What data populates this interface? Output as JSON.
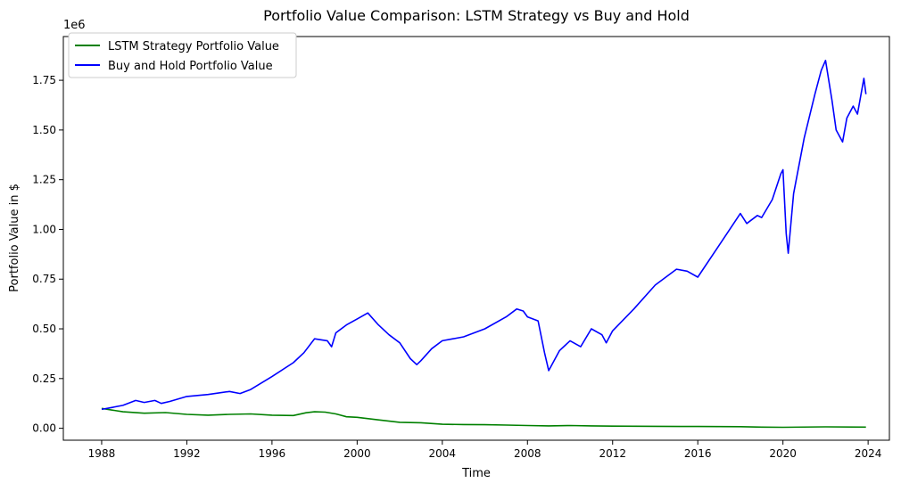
{
  "chart_data": {
    "type": "line",
    "title": "Portfolio Value Comparison: LSTM Strategy vs Buy and Hold",
    "xlabel": "Time",
    "ylabel": "Portfolio Value in $",
    "y_offset_label": "1e6",
    "xlim": [
      1986.2,
      2025.0
    ],
    "ylim": [
      -60000,
      1970000
    ],
    "x_ticks": [
      1988,
      1992,
      1996,
      2000,
      2004,
      2008,
      2012,
      2016,
      2020,
      2024
    ],
    "x_tick_labels": [
      "1988",
      "1992",
      "1996",
      "2000",
      "2004",
      "2008",
      "2012",
      "2016",
      "2020",
      "2024"
    ],
    "y_ticks": [
      0,
      250000,
      500000,
      750000,
      1000000,
      1250000,
      1500000,
      1750000
    ],
    "y_tick_labels": [
      "0.00",
      "0.25",
      "0.50",
      "0.75",
      "1.00",
      "1.25",
      "1.50",
      "1.75"
    ],
    "grid": false,
    "legend_position": "top-left",
    "series": [
      {
        "name": "LSTM Strategy Portfolio Value",
        "color": "#008000",
        "x": [
          1988.0,
          1989.0,
          1990.0,
          1991.0,
          1992.0,
          1993.0,
          1994.0,
          1995.0,
          1996.0,
          1997.0,
          1997.6,
          1998.0,
          1998.5,
          1999.0,
          1999.5,
          2000.0,
          2001.0,
          2002.0,
          2003.0,
          2004.0,
          2005.0,
          2006.0,
          2007.0,
          2008.0,
          2009.0,
          2010.0,
          2011.0,
          2012.0,
          2014.0,
          2016.0,
          2018.0,
          2019.0,
          2020.0,
          2022.0,
          2023.9
        ],
        "y": [
          100000,
          83000,
          76000,
          79000,
          70000,
          66000,
          70000,
          72000,
          66000,
          64000,
          78000,
          83000,
          81000,
          72000,
          58000,
          55000,
          42000,
          30000,
          28000,
          20000,
          19000,
          18000,
          16000,
          14000,
          12000,
          14000,
          12000,
          11000,
          10000,
          9000,
          8000,
          6000,
          5000,
          7000,
          6000
        ]
      },
      {
        "name": "Buy and Hold Portfolio Value",
        "color": "#0000ff",
        "x": [
          1988.0,
          1988.5,
          1989.0,
          1989.6,
          1990.0,
          1990.5,
          1990.8,
          1991.2,
          1992.0,
          1993.0,
          1994.0,
          1994.5,
          1995.0,
          1996.0,
          1997.0,
          1997.5,
          1998.0,
          1998.6,
          1998.8,
          1999.0,
          1999.5,
          2000.0,
          2000.5,
          2001.0,
          2001.5,
          2002.0,
          2002.5,
          2002.8,
          2003.0,
          2003.5,
          2004.0,
          2004.5,
          2005.0,
          2006.0,
          2007.0,
          2007.5,
          2007.8,
          2008.0,
          2008.5,
          2008.8,
          2009.0,
          2009.2,
          2009.5,
          2010.0,
          2010.5,
          2011.0,
          2011.5,
          2011.7,
          2012.0,
          2013.0,
          2014.0,
          2015.0,
          2015.5,
          2016.0,
          2017.0,
          2018.0,
          2018.3,
          2018.8,
          2019.0,
          2019.5,
          2019.9,
          2020.0,
          2020.15,
          2020.25,
          2020.5,
          2021.0,
          2021.5,
          2021.8,
          2022.0,
          2022.3,
          2022.5,
          2022.8,
          2023.0,
          2023.3,
          2023.5,
          2023.8,
          2023.9
        ],
        "y": [
          95000,
          105000,
          115000,
          140000,
          130000,
          140000,
          125000,
          135000,
          160000,
          170000,
          185000,
          175000,
          195000,
          260000,
          330000,
          380000,
          450000,
          440000,
          410000,
          480000,
          520000,
          550000,
          580000,
          520000,
          470000,
          430000,
          350000,
          320000,
          340000,
          400000,
          440000,
          450000,
          460000,
          500000,
          560000,
          600000,
          590000,
          560000,
          540000,
          380000,
          290000,
          330000,
          390000,
          440000,
          410000,
          500000,
          470000,
          430000,
          490000,
          600000,
          720000,
          800000,
          790000,
          760000,
          920000,
          1080000,
          1030000,
          1070000,
          1060000,
          1150000,
          1280000,
          1300000,
          980000,
          880000,
          1180000,
          1460000,
          1680000,
          1800000,
          1850000,
          1650000,
          1500000,
          1440000,
          1560000,
          1620000,
          1580000,
          1760000,
          1680000
        ]
      }
    ]
  }
}
